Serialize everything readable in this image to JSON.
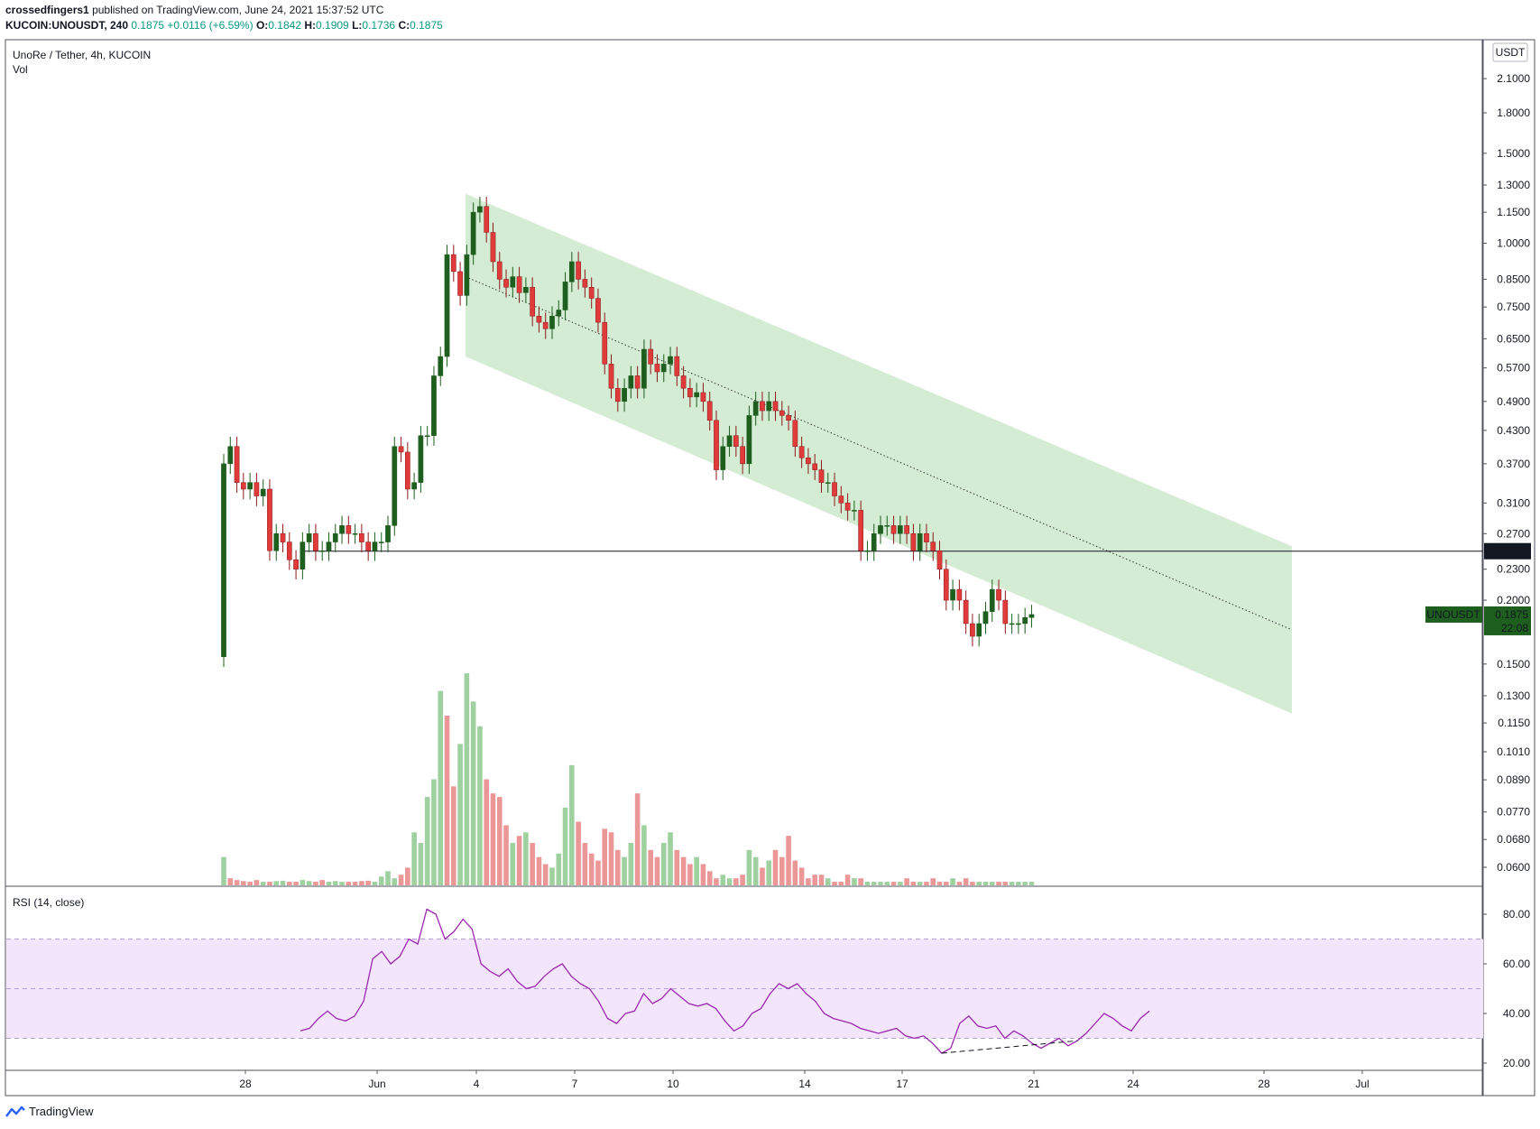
{
  "header": {
    "author": "crossedfingers1",
    "published": "published on TradingView.com, June 24, 2021 15:37:52 UTC",
    "symbol": "KUCOIN:UNOUSDT, 240",
    "last": "0.1875",
    "change": "+0.0116 (+6.59%)",
    "o_label": "O:",
    "o": "0.1842",
    "h_label": "H:",
    "h": "0.1909",
    "l_label": "L:",
    "l": "0.1736",
    "c_label": "C:",
    "c": "0.1875"
  },
  "footer": {
    "brand": "TradingView"
  },
  "colors": {
    "up": "#26a42a",
    "up_dark": "#1e5e1e",
    "down": "#e03a3a",
    "down_dark": "#8b1a1a",
    "vol_up": "#9fd09f",
    "vol_down": "#eb9797",
    "channel": "#cfe9cf",
    "rsi_band": "#f3e5fb",
    "rsi_line": "#9c27b0"
  },
  "chart_data": [
    {
      "type": "candlestick",
      "legend": [
        "UnoRe / Tether, 4h, KUCOIN",
        "Vol"
      ],
      "y_scale": "log",
      "y_unit": "USDT",
      "y_ticks": [
        "2.1000",
        "1.8000",
        "1.5000",
        "1.3000",
        "1.1500",
        "1.0000",
        "0.8500",
        "0.7500",
        "0.6500",
        "0.5700",
        "0.4900",
        "0.4300",
        "0.3700",
        "0.3100",
        "0.2700",
        "0.2300",
        "0.2000",
        "0.1500",
        "0.1300",
        "0.1150",
        "0.1010",
        "0.0890",
        "0.0770",
        "0.0680",
        "0.0600"
      ],
      "x_ticks": [
        "28",
        "Jun",
        "4",
        "7",
        "10",
        "14",
        "17",
        "21",
        "24",
        "28",
        "Jul"
      ],
      "horizontal_line": {
        "value": 0.2495,
        "label": "0.2495"
      },
      "last_price": {
        "symbol": "UNOUSDT",
        "value": "0.1875",
        "countdown": "22:08"
      },
      "channel": {
        "upper_start": 1.25,
        "lower_start": 0.6,
        "upper_end": 0.255,
        "lower_end": 0.12,
        "midline_start": 0.86,
        "midline_end": 0.175
      },
      "closes": [
        0.37,
        0.4,
        0.34,
        0.33,
        0.34,
        0.32,
        0.33,
        0.25,
        0.27,
        0.26,
        0.24,
        0.23,
        0.26,
        0.27,
        0.25,
        0.25,
        0.26,
        0.27,
        0.28,
        0.27,
        0.27,
        0.26,
        0.25,
        0.26,
        0.26,
        0.28,
        0.4,
        0.39,
        0.33,
        0.34,
        0.42,
        0.42,
        0.55,
        0.6,
        0.95,
        0.88,
        0.79,
        0.95,
        1.15,
        1.18,
        1.05,
        0.92,
        0.85,
        0.82,
        0.86,
        0.8,
        0.82,
        0.72,
        0.7,
        0.68,
        0.72,
        0.74,
        0.84,
        0.92,
        0.85,
        0.82,
        0.78,
        0.7,
        0.58,
        0.52,
        0.49,
        0.52,
        0.55,
        0.52,
        0.62,
        0.58,
        0.56,
        0.58,
        0.6,
        0.55,
        0.52,
        0.5,
        0.51,
        0.49,
        0.45,
        0.36,
        0.4,
        0.42,
        0.4,
        0.37,
        0.46,
        0.49,
        0.47,
        0.49,
        0.47,
        0.46,
        0.45,
        0.4,
        0.38,
        0.37,
        0.36,
        0.34,
        0.34,
        0.32,
        0.31,
        0.3,
        0.3,
        0.25,
        0.25,
        0.27,
        0.28,
        0.28,
        0.27,
        0.28,
        0.27,
        0.25,
        0.27,
        0.26,
        0.25,
        0.23,
        0.2,
        0.21,
        0.2,
        0.18,
        0.17,
        0.18,
        0.19,
        0.21,
        0.2,
        0.18,
        0.18,
        0.18,
        0.185,
        0.1875
      ],
      "volume": [
        8,
        2,
        1.5,
        1.2,
        1,
        1.5,
        1,
        1,
        1.2,
        1.3,
        1,
        1,
        1.5,
        1.2,
        1,
        1.5,
        1,
        1.2,
        1,
        1,
        1,
        1.2,
        1.3,
        1,
        2.5,
        4,
        2,
        3,
        5,
        15,
        12,
        25,
        30,
        55,
        48,
        28,
        40,
        60,
        52,
        45,
        30,
        26,
        25,
        17,
        12,
        14,
        15,
        12,
        8,
        6,
        5,
        9,
        22,
        34,
        18,
        12,
        9,
        7,
        16,
        15,
        10,
        8,
        12,
        26,
        17,
        10,
        8,
        12,
        15,
        10,
        8,
        6,
        8,
        6,
        4,
        2,
        3,
        2,
        2,
        3,
        10,
        8,
        5,
        7,
        10,
        8,
        14,
        7,
        5,
        2,
        3,
        3,
        2,
        1,
        1,
        3,
        2,
        2,
        1,
        1,
        1,
        1,
        1,
        1,
        2,
        1,
        1,
        1,
        2,
        1,
        1,
        2,
        1,
        2,
        1,
        1,
        1,
        1,
        1,
        1,
        1,
        1,
        1,
        1
      ],
      "volume_up": [
        1,
        0,
        0,
        0,
        0,
        0,
        1,
        0,
        1,
        1,
        0,
        0,
        1,
        1,
        0,
        0,
        1,
        1,
        1,
        0,
        0,
        0,
        0,
        1,
        1,
        1,
        1,
        0,
        0,
        1,
        1,
        1,
        1,
        1,
        0,
        0,
        1,
        1,
        1,
        1,
        0,
        0,
        0,
        0,
        1,
        0,
        1,
        0,
        0,
        0,
        1,
        1,
        1,
        1,
        0,
        0,
        0,
        0,
        0,
        0,
        0,
        1,
        1,
        0,
        1,
        0,
        0,
        1,
        1,
        0,
        0,
        0,
        1,
        0,
        0,
        0,
        1,
        1,
        0,
        0,
        1,
        1,
        0,
        1,
        0,
        0,
        0,
        0,
        0,
        0,
        0,
        0,
        1,
        0,
        0,
        0,
        1,
        0,
        1,
        1,
        1,
        1,
        0,
        1,
        0,
        0,
        1,
        0,
        0,
        0,
        0,
        1,
        0,
        0,
        0,
        1,
        1,
        1,
        0,
        0,
        1,
        1,
        1,
        1
      ]
    },
    {
      "type": "line",
      "legend": "RSI (14, close)",
      "y_ticks": [
        "80.00",
        "60.00",
        "40.00",
        "20.00"
      ],
      "upper_band": 70,
      "middle_band": 50,
      "lower_band": 30,
      "values": [
        33,
        34,
        38,
        41,
        38,
        37,
        39,
        45,
        62,
        65,
        60,
        63,
        70,
        68,
        82,
        80,
        70,
        73,
        78,
        74,
        60,
        57,
        55,
        58,
        53,
        50,
        51,
        55,
        58,
        60,
        55,
        52,
        50,
        45,
        38,
        36,
        40,
        41,
        48,
        44,
        46,
        50,
        47,
        44,
        43,
        44,
        42,
        37,
        33,
        35,
        40,
        42,
        48,
        52,
        50,
        52,
        48,
        45,
        40,
        38,
        37,
        36,
        34,
        33,
        32,
        33,
        34,
        31,
        30,
        31,
        28,
        24,
        26,
        36,
        39,
        35,
        34,
        35,
        30,
        33,
        31,
        28,
        26,
        28,
        30,
        27,
        29,
        32,
        36,
        40,
        38,
        35,
        33,
        38,
        41
      ],
      "divergence_line": {
        "from_index": 71,
        "to_index": 86
      }
    }
  ]
}
